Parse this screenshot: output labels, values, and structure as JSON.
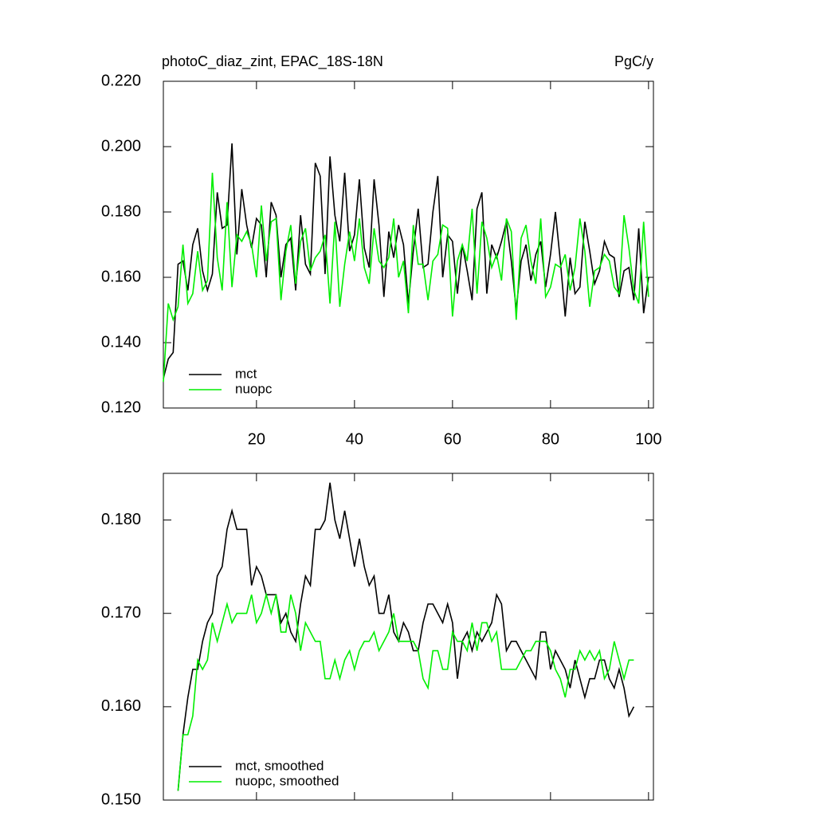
{
  "chart_data": [
    {
      "type": "line",
      "title": "photoC_diaz_zint, EPAC_18S-18N",
      "title_right": "PgC/y",
      "x": [
        1,
        2,
        3,
        4,
        5,
        6,
        7,
        8,
        9,
        10,
        11,
        12,
        13,
        14,
        15,
        16,
        17,
        18,
        19,
        20,
        21,
        22,
        23,
        24,
        25,
        26,
        27,
        28,
        29,
        30,
        31,
        32,
        33,
        34,
        35,
        36,
        37,
        38,
        39,
        40,
        41,
        42,
        43,
        44,
        45,
        46,
        47,
        48,
        49,
        50,
        51,
        52,
        53,
        54,
        55,
        56,
        57,
        58,
        59,
        60,
        61,
        62,
        63,
        64,
        65,
        66,
        67,
        68,
        69,
        70,
        71,
        72,
        73,
        74,
        75,
        76,
        77,
        78,
        79,
        80,
        81,
        82,
        83,
        84,
        85,
        86,
        87,
        88,
        89,
        90,
        91,
        92,
        93,
        94,
        95,
        96,
        97,
        98,
        99,
        100
      ],
      "series": [
        {
          "name": "mct",
          "color": "#000000",
          "values": [
            0.129,
            0.135,
            0.137,
            0.164,
            0.165,
            0.156,
            0.17,
            0.175,
            0.162,
            0.156,
            0.161,
            0.186,
            0.175,
            0.176,
            0.201,
            0.167,
            0.187,
            0.176,
            0.169,
            0.178,
            0.176,
            0.16,
            0.183,
            0.179,
            0.16,
            0.17,
            0.172,
            0.156,
            0.179,
            0.164,
            0.161,
            0.195,
            0.191,
            0.161,
            0.197,
            0.179,
            0.171,
            0.192,
            0.168,
            0.173,
            0.19,
            0.169,
            0.163,
            0.19,
            0.176,
            0.154,
            0.174,
            0.166,
            0.176,
            0.17,
            0.152,
            0.168,
            0.181,
            0.163,
            0.164,
            0.18,
            0.191,
            0.16,
            0.173,
            0.171,
            0.155,
            0.17,
            0.162,
            0.153,
            0.181,
            0.186,
            0.155,
            0.17,
            0.166,
            0.171,
            0.177,
            0.165,
            0.15,
            0.165,
            0.17,
            0.159,
            0.167,
            0.171,
            0.157,
            0.167,
            0.18,
            0.165,
            0.148,
            0.166,
            0.155,
            0.157,
            0.177,
            0.168,
            0.158,
            0.162,
            0.171,
            0.167,
            0.166,
            0.154,
            0.162,
            0.163,
            0.153,
            0.175,
            0.149,
            0.16
          ]
        },
        {
          "name": "nuopc",
          "color": "#00ee00",
          "values": [
            0.128,
            0.152,
            0.147,
            0.151,
            0.17,
            0.152,
            0.155,
            0.168,
            0.156,
            0.159,
            0.192,
            0.166,
            0.156,
            0.183,
            0.157,
            0.173,
            0.171,
            0.174,
            0.17,
            0.16,
            0.182,
            0.165,
            0.177,
            0.178,
            0.153,
            0.168,
            0.176,
            0.158,
            0.171,
            0.175,
            0.162,
            0.166,
            0.168,
            0.173,
            0.152,
            0.177,
            0.151,
            0.164,
            0.174,
            0.165,
            0.178,
            0.163,
            0.158,
            0.175,
            0.165,
            0.163,
            0.166,
            0.178,
            0.16,
            0.165,
            0.149,
            0.176,
            0.164,
            0.164,
            0.153,
            0.165,
            0.167,
            0.176,
            0.175,
            0.148,
            0.165,
            0.17,
            0.165,
            0.181,
            0.155,
            0.177,
            0.172,
            0.163,
            0.167,
            0.159,
            0.178,
            0.174,
            0.147,
            0.172,
            0.176,
            0.165,
            0.158,
            0.178,
            0.154,
            0.157,
            0.164,
            0.163,
            0.167,
            0.156,
            0.163,
            0.178,
            0.168,
            0.151,
            0.162,
            0.163,
            0.167,
            0.165,
            0.157,
            0.155,
            0.179,
            0.169,
            0.156,
            0.152,
            0.177,
            0.154
          ]
        }
      ],
      "xlim": [
        1,
        101
      ],
      "xticks": [
        20,
        40,
        60,
        80,
        100
      ],
      "xtick_labels": true,
      "ylim": [
        0.12,
        0.22
      ],
      "yticks": [
        {
          "value": 0.12,
          "label": "0.120"
        },
        {
          "value": 0.14,
          "label": "0.140"
        },
        {
          "value": 0.16,
          "label": "0.160"
        },
        {
          "value": 0.18,
          "label": "0.180"
        },
        {
          "value": 0.2,
          "label": "0.200"
        },
        {
          "value": 0.22,
          "label": "0.220"
        }
      ],
      "legend": "lower left"
    },
    {
      "type": "line",
      "x": [
        4,
        5,
        6,
        7,
        8,
        9,
        10,
        11,
        12,
        13,
        14,
        15,
        16,
        17,
        18,
        19,
        20,
        21,
        22,
        23,
        24,
        25,
        26,
        27,
        28,
        29,
        30,
        31,
        32,
        33,
        34,
        35,
        36,
        37,
        38,
        39,
        40,
        41,
        42,
        43,
        44,
        45,
        46,
        47,
        48,
        49,
        50,
        51,
        52,
        53,
        54,
        55,
        56,
        57,
        58,
        59,
        60,
        61,
        62,
        63,
        64,
        65,
        66,
        67,
        68,
        69,
        70,
        71,
        72,
        73,
        74,
        75,
        76,
        77,
        78,
        79,
        80,
        81,
        82,
        83,
        84,
        85,
        86,
        87,
        88,
        89,
        90,
        91,
        92,
        93,
        94,
        95,
        96,
        97
      ],
      "series": [
        {
          "name": "mct, smoothed",
          "color": "#000000",
          "values": [
            0.151,
            0.157,
            0.161,
            0.164,
            0.164,
            0.167,
            0.169,
            0.17,
            0.174,
            0.175,
            0.179,
            0.181,
            0.179,
            0.179,
            0.179,
            0.173,
            0.175,
            0.174,
            0.172,
            0.172,
            0.172,
            0.169,
            0.17,
            0.168,
            0.167,
            0.171,
            0.174,
            0.173,
            0.179,
            0.179,
            0.18,
            0.184,
            0.18,
            0.178,
            0.181,
            0.178,
            0.175,
            0.178,
            0.175,
            0.173,
            0.174,
            0.17,
            0.17,
            0.172,
            0.168,
            0.167,
            0.169,
            0.168,
            0.166,
            0.166,
            0.169,
            0.171,
            0.171,
            0.17,
            0.169,
            0.171,
            0.169,
            0.163,
            0.167,
            0.168,
            0.166,
            0.168,
            0.167,
            0.168,
            0.169,
            0.172,
            0.171,
            0.166,
            0.167,
            0.167,
            0.166,
            0.165,
            0.164,
            0.163,
            0.168,
            0.168,
            0.164,
            0.166,
            0.165,
            0.164,
            0.162,
            0.165,
            0.163,
            0.161,
            0.163,
            0.163,
            0.165,
            0.165,
            0.163,
            0.162,
            0.164,
            0.162,
            0.159,
            0.16
          ]
        },
        {
          "name": "nuopc, smoothed",
          "color": "#00ee00",
          "values": [
            0.151,
            0.157,
            0.157,
            0.159,
            0.165,
            0.164,
            0.165,
            0.169,
            0.167,
            0.169,
            0.171,
            0.169,
            0.17,
            0.17,
            0.17,
            0.172,
            0.169,
            0.17,
            0.172,
            0.17,
            0.172,
            0.168,
            0.168,
            0.172,
            0.17,
            0.166,
            0.169,
            0.168,
            0.167,
            0.167,
            0.163,
            0.163,
            0.165,
            0.163,
            0.165,
            0.166,
            0.164,
            0.166,
            0.167,
            0.167,
            0.168,
            0.166,
            0.167,
            0.168,
            0.17,
            0.167,
            0.167,
            0.167,
            0.167,
            0.166,
            0.163,
            0.162,
            0.166,
            0.166,
            0.164,
            0.164,
            0.168,
            0.167,
            0.167,
            0.166,
            0.169,
            0.166,
            0.169,
            0.169,
            0.167,
            0.168,
            0.164,
            0.164,
            0.164,
            0.164,
            0.165,
            0.166,
            0.166,
            0.167,
            0.167,
            0.167,
            0.166,
            0.164,
            0.163,
            0.161,
            0.164,
            0.164,
            0.166,
            0.165,
            0.166,
            0.165,
            0.166,
            0.163,
            0.164,
            0.167,
            0.165,
            0.163,
            0.165,
            0.165
          ]
        }
      ],
      "xlim": [
        1,
        101
      ],
      "xticks": [
        20,
        40,
        60,
        80,
        100
      ],
      "xtick_labels": false,
      "ylim": [
        0.15,
        0.185
      ],
      "yticks": [
        {
          "value": 0.15,
          "label": "0.150"
        },
        {
          "value": 0.16,
          "label": "0.160"
        },
        {
          "value": 0.17,
          "label": "0.170"
        },
        {
          "value": 0.18,
          "label": "0.180"
        }
      ],
      "legend": "lower left"
    }
  ]
}
